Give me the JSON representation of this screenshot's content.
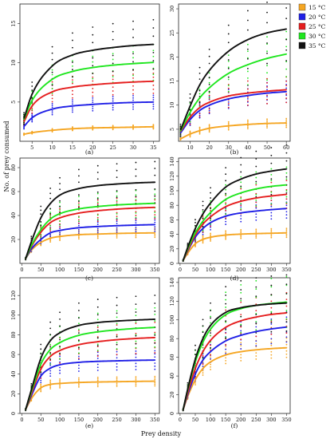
{
  "figure": {
    "y_axis_label": "No. of prey consumed",
    "x_axis_label": "Prey density"
  },
  "legend": [
    {
      "label": "15 °C",
      "color": "#f5a623"
    },
    {
      "label": "20 °C",
      "color": "#1f1fe6"
    },
    {
      "label": "25 °C",
      "color": "#e51e1e"
    },
    {
      "label": "30 °C",
      "color": "#1fe61f"
    },
    {
      "label": "35 °C",
      "color": "#111111"
    }
  ],
  "chart_data": [
    {
      "type": "line",
      "panel_label": "(a)",
      "xlim": [
        2,
        36.5
      ],
      "ylim": [
        0,
        17.5
      ],
      "xticks": [
        5,
        10,
        15,
        20,
        25,
        30,
        35
      ],
      "yticks": [
        5,
        10,
        15
      ],
      "x": [
        3,
        5,
        10,
        15,
        20,
        25,
        30,
        35
      ],
      "series": [
        {
          "name": "15 °C",
          "values": [
            0.9,
            1.1,
            1.4,
            1.6,
            1.7,
            1.75,
            1.8,
            1.85
          ]
        },
        {
          "name": "20 °C",
          "values": [
            1.9,
            3.0,
            4.1,
            4.5,
            4.7,
            4.85,
            4.95,
            5.0
          ]
        },
        {
          "name": "25 °C",
          "values": [
            2.5,
            4.5,
            6.3,
            6.9,
            7.2,
            7.4,
            7.55,
            7.65
          ]
        },
        {
          "name": "30 °C",
          "values": [
            2.8,
            5.2,
            7.9,
            8.9,
            9.4,
            9.7,
            9.9,
            10.05
          ]
        },
        {
          "name": "35 °C",
          "values": [
            2.9,
            6.0,
            9.6,
            11.0,
            11.6,
            11.95,
            12.2,
            12.35
          ]
        }
      ]
    },
    {
      "type": "line",
      "panel_label": "(b)",
      "xlim": [
        4,
        62
      ],
      "ylim": [
        2.5,
        31
      ],
      "xticks": [
        10,
        20,
        30,
        40,
        50,
        60
      ],
      "yticks": [
        5,
        10,
        15,
        20,
        25,
        30
      ],
      "x": [
        5,
        10,
        15,
        20,
        30,
        40,
        50,
        60
      ],
      "series": [
        {
          "name": "15 °C",
          "values": [
            3.0,
            4.0,
            4.7,
            5.2,
            5.7,
            6.0,
            6.2,
            6.3
          ]
        },
        {
          "name": "20 °C",
          "values": [
            4.2,
            7.0,
            8.9,
            10.0,
            11.3,
            12.0,
            12.5,
            12.8
          ]
        },
        {
          "name": "25 °C",
          "values": [
            4.5,
            7.5,
            9.5,
            10.6,
            11.9,
            12.5,
            12.9,
            13.2
          ]
        },
        {
          "name": "30 °C",
          "values": [
            4.6,
            8.5,
            11.5,
            13.6,
            16.6,
            18.4,
            19.7,
            20.6
          ]
        },
        {
          "name": "35 °C",
          "values": [
            4.8,
            9.8,
            14.2,
            17.2,
            21.2,
            23.6,
            25.0,
            25.8
          ]
        }
      ]
    },
    {
      "type": "line",
      "panel_label": "(c)",
      "xlim": [
        -5,
        362
      ],
      "ylim": [
        0,
        88
      ],
      "xticks": [
        0,
        50,
        100,
        150,
        200,
        250,
        300,
        350
      ],
      "yticks": [
        20,
        40,
        60,
        80
      ],
      "x": [
        10,
        25,
        50,
        75,
        100,
        150,
        200,
        250,
        300,
        350
      ],
      "series": [
        {
          "name": "15 °C",
          "values": [
            4,
            11,
            17.5,
            21,
            22.5,
            24,
            24.5,
            25,
            25.3,
            25.5
          ]
        },
        {
          "name": "20 °C",
          "values": [
            4,
            12,
            20,
            25.5,
            27.5,
            29.8,
            30.8,
            31.5,
            32,
            32.4
          ]
        },
        {
          "name": "25 °C",
          "values": [
            4,
            14,
            26,
            34,
            38,
            42,
            44,
            45.3,
            46.2,
            46.8
          ]
        },
        {
          "name": "30 °C",
          "values": [
            4,
            15,
            28,
            37,
            41.5,
            45.5,
            47.5,
            48.8,
            49.6,
            50.2
          ]
        },
        {
          "name": "35 °C",
          "values": [
            4,
            18,
            38,
            50,
            57,
            62.5,
            65,
            66.3,
            67.2,
            67.8
          ]
        }
      ]
    },
    {
      "type": "line",
      "panel_label": "(d)",
      "xlim": [
        -5,
        362
      ],
      "ylim": [
        0,
        145
      ],
      "xticks": [
        0,
        50,
        100,
        150,
        200,
        250,
        300,
        350
      ],
      "yticks": [
        0,
        20,
        40,
        60,
        80,
        100,
        120,
        140
      ],
      "x": [
        10,
        25,
        50,
        75,
        100,
        150,
        200,
        250,
        300,
        350
      ],
      "series": [
        {
          "name": "15 °C",
          "values": [
            4,
            14,
            27,
            33,
            36,
            39,
            40.3,
            41,
            41.5,
            42
          ]
        },
        {
          "name": "20 °C",
          "values": [
            4,
            17,
            36,
            48,
            56,
            65,
            69.5,
            72,
            74,
            75.5
          ]
        },
        {
          "name": "25 °C",
          "values": [
            4,
            18,
            39,
            54,
            64,
            78,
            85.5,
            90,
            92.8,
            95
          ]
        },
        {
          "name": "30 °C",
          "values": [
            4,
            20,
            42,
            58,
            70,
            88,
            97,
            102.5,
            106,
            108
          ]
        },
        {
          "name": "35 °C",
          "values": [
            4,
            22,
            48,
            68,
            83,
            105,
            116,
            123,
            127,
            130
          ]
        }
      ]
    },
    {
      "type": "line",
      "panel_label": "(e)",
      "xlim": [
        -5,
        362
      ],
      "ylim": [
        0,
        138
      ],
      "xticks": [
        0,
        50,
        100,
        150,
        200,
        250,
        300,
        350
      ],
      "yticks": [
        0,
        20,
        40,
        60,
        80,
        100,
        120
      ],
      "x": [
        10,
        25,
        50,
        75,
        100,
        150,
        200,
        250,
        300,
        350
      ],
      "series": [
        {
          "name": "15 °C",
          "values": [
            4,
            15,
            26,
            29.5,
            30.5,
            31.5,
            32,
            32.3,
            32.6,
            32.8
          ]
        },
        {
          "name": "20 °C",
          "values": [
            4,
            18,
            38,
            46,
            49.5,
            52,
            53,
            53.5,
            54,
            54.3
          ]
        },
        {
          "name": "25 °C",
          "values": [
            4,
            20,
            45,
            58,
            64,
            70,
            73,
            75,
            76.3,
            77.2
          ]
        },
        {
          "name": "30 °C",
          "values": [
            4,
            22,
            50,
            65,
            72,
            79.5,
            83,
            85,
            86.5,
            87.5
          ]
        },
        {
          "name": "35 °C",
          "values": [
            4,
            24,
            56,
            74,
            82,
            89.5,
            92.5,
            94,
            95,
            95.8
          ]
        }
      ]
    },
    {
      "type": "line",
      "panel_label": "(f)",
      "xlim": [
        -5,
        362
      ],
      "ylim": [
        0,
        145
      ],
      "xticks": [
        0,
        50,
        100,
        150,
        200,
        250,
        300,
        350
      ],
      "yticks": [
        0,
        20,
        40,
        60,
        80,
        100,
        120,
        140
      ],
      "x": [
        10,
        25,
        50,
        75,
        100,
        150,
        200,
        250,
        300,
        350
      ],
      "series": [
        {
          "name": "15 °C",
          "values": [
            4,
            18,
            36,
            48,
            55,
            62.5,
            66,
            68,
            69.3,
            70.2
          ]
        },
        {
          "name": "20 °C",
          "values": [
            4,
            20,
            42,
            57,
            66,
            77.5,
            83.5,
            87.5,
            90.3,
            92.3
          ]
        },
        {
          "name": "25 °C",
          "values": [
            4,
            22,
            48,
            66,
            78,
            92,
            99,
            103,
            105.8,
            107.5
          ]
        },
        {
          "name": "30 °C",
          "values": [
            4,
            25,
            55,
            76,
            90,
            105.5,
            112,
            115.5,
            117.5,
            119
          ]
        },
        {
          "name": "35 °C",
          "values": [
            4,
            26,
            58,
            80,
            94,
            108,
            113,
            115.5,
            117,
            118
          ]
        }
      ]
    }
  ]
}
